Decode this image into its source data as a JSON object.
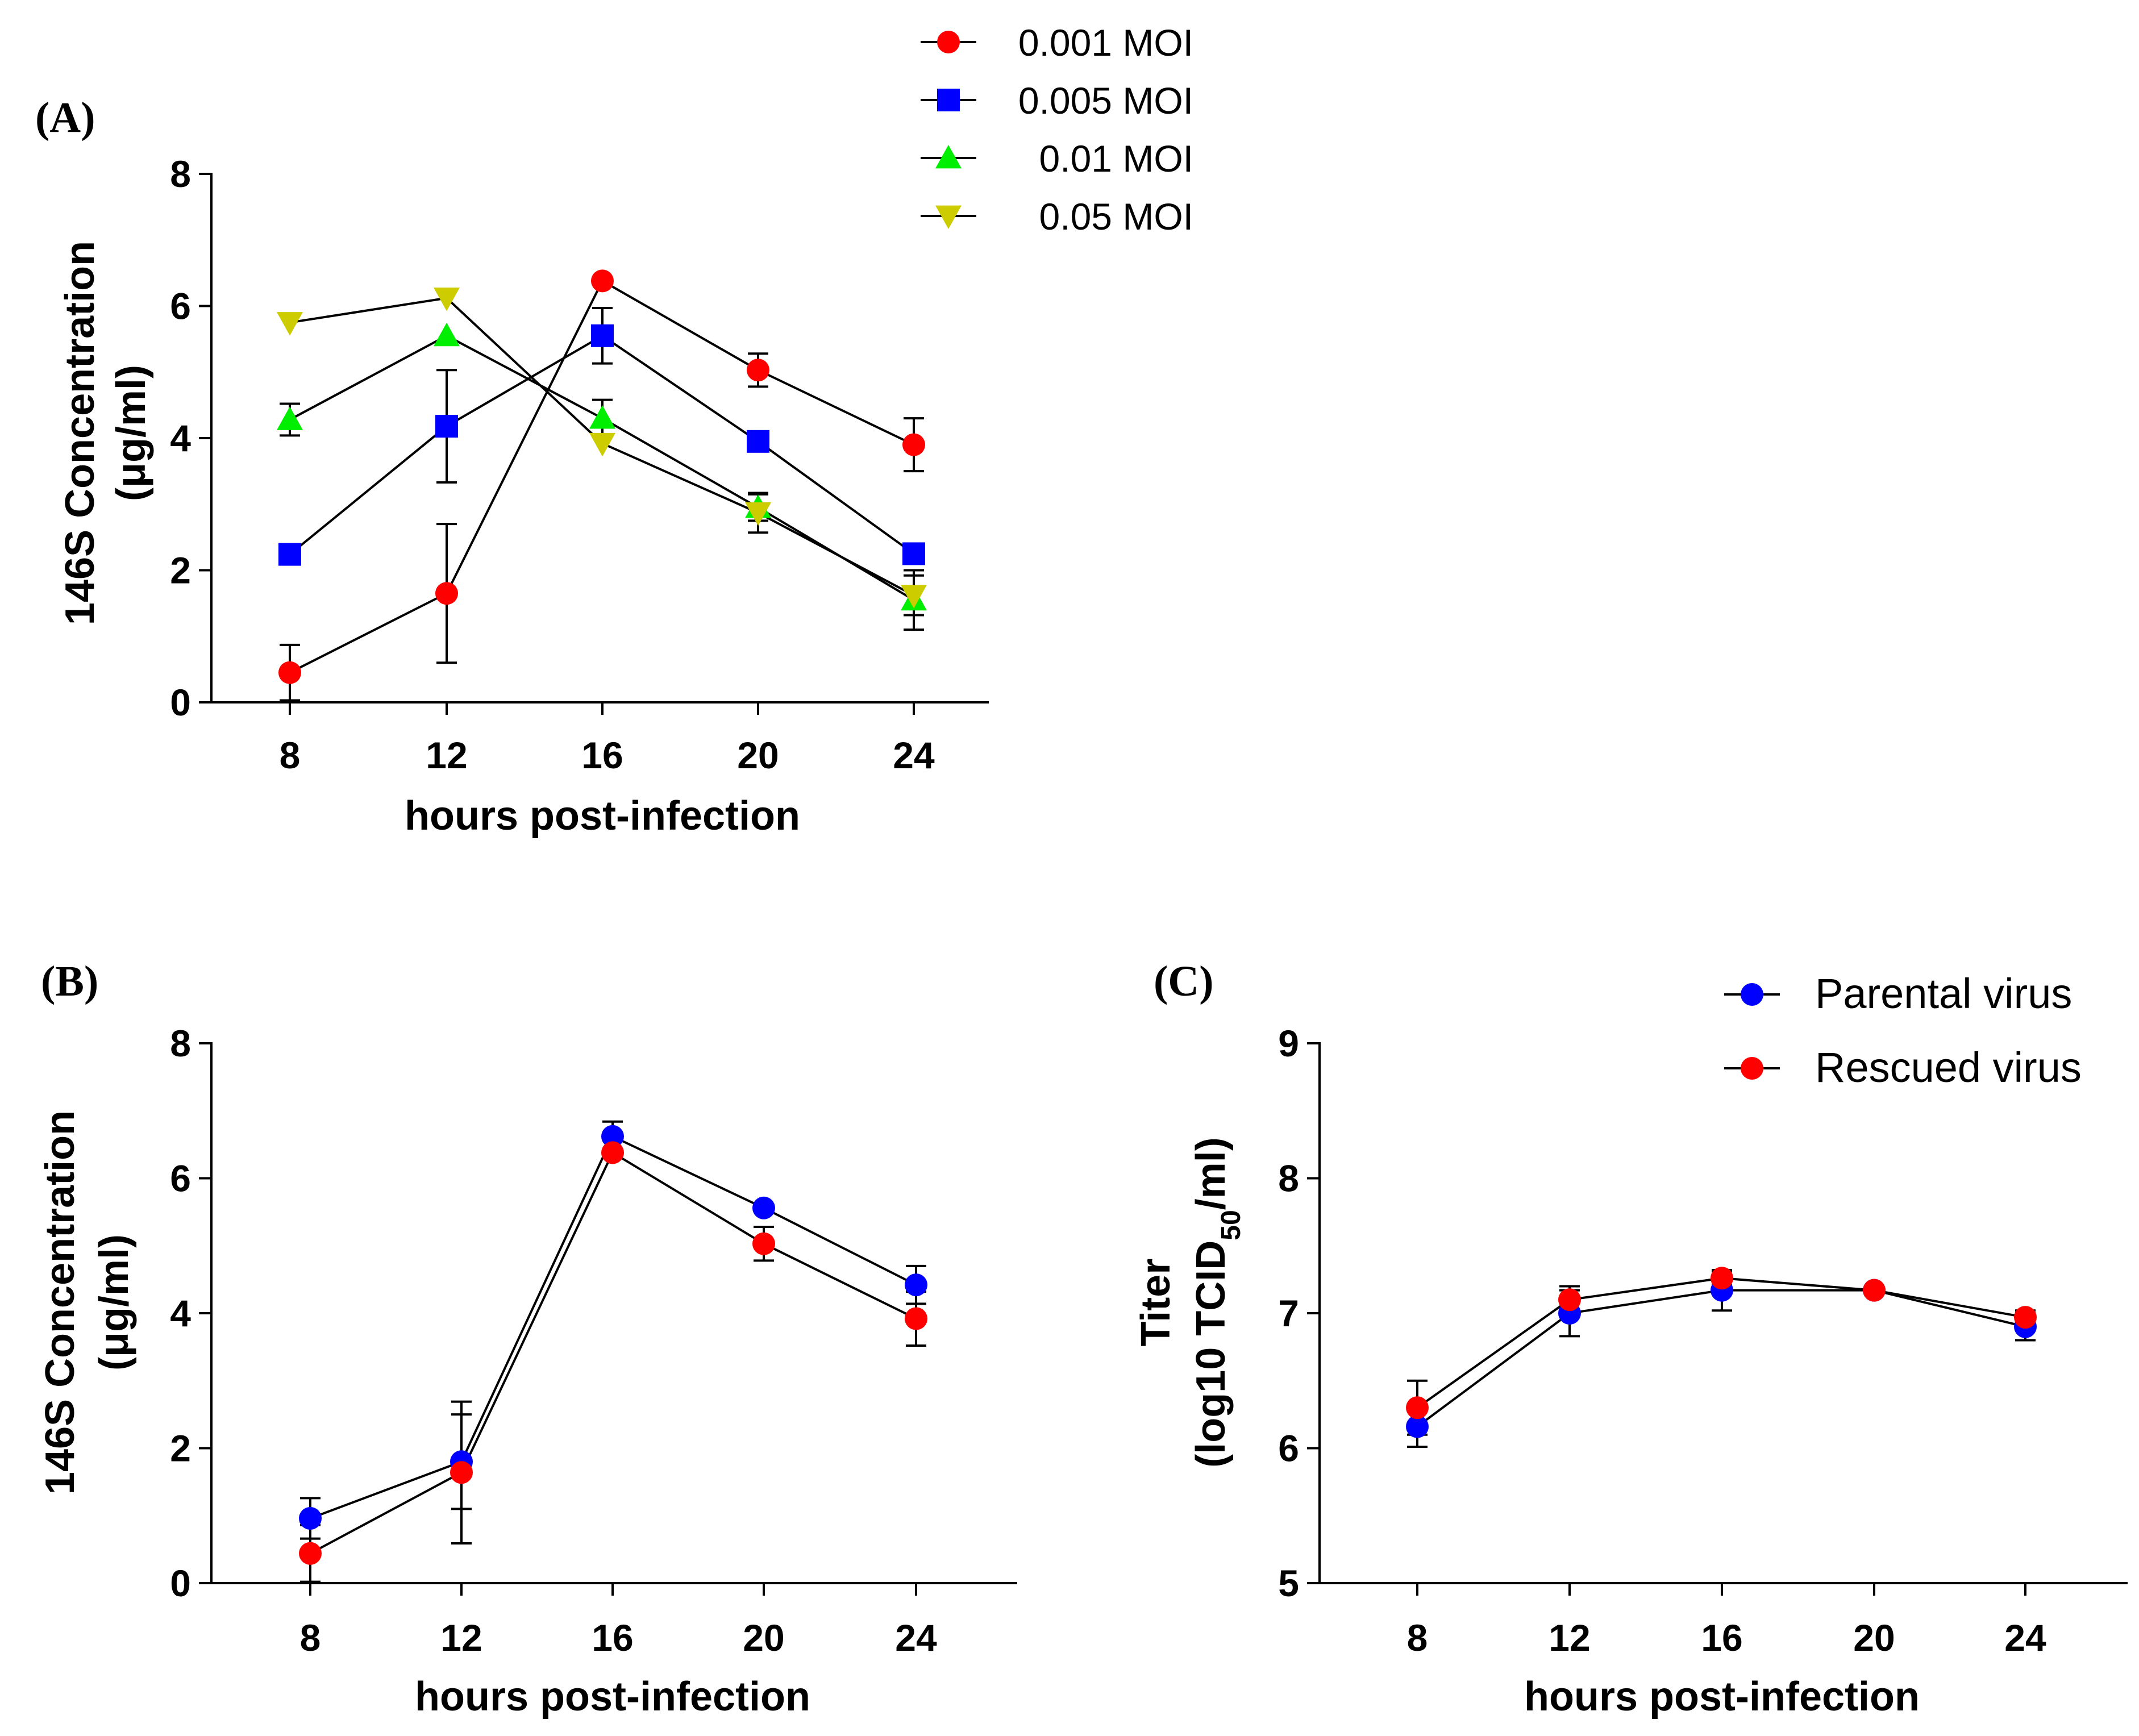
{
  "chart_data": [
    {
      "type": "line",
      "panel": "(A)",
      "xlabel": "hours post-infection",
      "ylabel": [
        "146S Concentration",
        "(μg/ml)"
      ],
      "x": [
        8,
        12,
        16,
        20,
        24
      ],
      "xticks": [
        "8",
        "12",
        "16",
        "20",
        "24"
      ],
      "ylim": [
        0,
        8
      ],
      "yticks": [
        "0",
        "2",
        "4",
        "6",
        "8"
      ],
      "legend_position": "top-right",
      "series": [
        {
          "name": "0.001 MOI",
          "marker": "circle",
          "color": "#ff0000",
          "values": [
            0.45,
            1.65,
            6.38,
            5.03,
            3.9
          ],
          "errors": [
            0.42,
            1.05,
            0.0,
            0.25,
            0.4
          ]
        },
        {
          "name": "0.005 MOI",
          "marker": "square",
          "color": "#0000ff",
          "values": [
            2.24,
            4.18,
            5.55,
            3.95,
            2.25
          ],
          "errors": [
            0.0,
            0.85,
            0.42,
            0.0,
            0.0
          ]
        },
        {
          "name": "0.01 MOI",
          "marker": "triangle-up",
          "color": "#00ee00",
          "values": [
            4.28,
            5.55,
            4.3,
            2.95,
            1.55
          ],
          "errors": [
            0.24,
            0.0,
            0.28,
            0.2,
            0.45
          ]
        },
        {
          "name": "0.05 MOI",
          "marker": "triangle-down",
          "color": "#cccc00",
          "values": [
            5.75,
            6.12,
            3.92,
            2.87,
            1.62
          ],
          "errors": [
            0.0,
            0.0,
            0.0,
            0.3,
            0.3
          ]
        }
      ]
    },
    {
      "type": "line",
      "panel": "(B)",
      "xlabel": "hours post-infection",
      "ylabel": [
        "146S Concentration",
        "(μg/ml)"
      ],
      "x": [
        8,
        12,
        16,
        20,
        24
      ],
      "xticks": [
        "8",
        "12",
        "16",
        "20",
        "24"
      ],
      "ylim": [
        0,
        8
      ],
      "yticks": [
        "0",
        "2",
        "4",
        "6",
        "8"
      ],
      "legend": false,
      "series": [
        {
          "name": "Parental virus",
          "marker": "circle",
          "color": "#0000ff",
          "values": [
            0.96,
            1.8,
            6.62,
            5.56,
            4.42
          ],
          "errors": [
            0.3,
            0.7,
            0.22,
            0.0,
            0.28
          ]
        },
        {
          "name": "Rescued virus",
          "marker": "circle",
          "color": "#ff0000",
          "values": [
            0.44,
            1.64,
            6.38,
            5.03,
            3.92
          ],
          "errors": [
            0.42,
            1.05,
            0.0,
            0.25,
            0.4
          ]
        }
      ]
    },
    {
      "type": "line",
      "panel": "(C)",
      "xlabel": "hours post-infection",
      "ylabel": [
        "Titer",
        "(log10 TCID",
        "50",
        "/ml)"
      ],
      "x": [
        8,
        12,
        16,
        20,
        24
      ],
      "xticks": [
        "8",
        "12",
        "16",
        "20",
        "24"
      ],
      "ylim": [
        5,
        9
      ],
      "yticks": [
        "5",
        "6",
        "7",
        "8",
        "9"
      ],
      "legend_position": "top-right",
      "series": [
        {
          "name": "Parental virus",
          "marker": "circle",
          "color": "#0000ff",
          "values": [
            6.16,
            7.0,
            7.17,
            7.17,
            6.9
          ],
          "errors": [
            0.15,
            0.17,
            0.15,
            0.0,
            0.1
          ]
        },
        {
          "name": "Rescued virus",
          "marker": "circle",
          "color": "#ff0000",
          "values": [
            6.3,
            7.1,
            7.26,
            7.17,
            6.97
          ],
          "errors": [
            0.2,
            0.1,
            0.05,
            0.0,
            0.05
          ]
        }
      ]
    }
  ]
}
